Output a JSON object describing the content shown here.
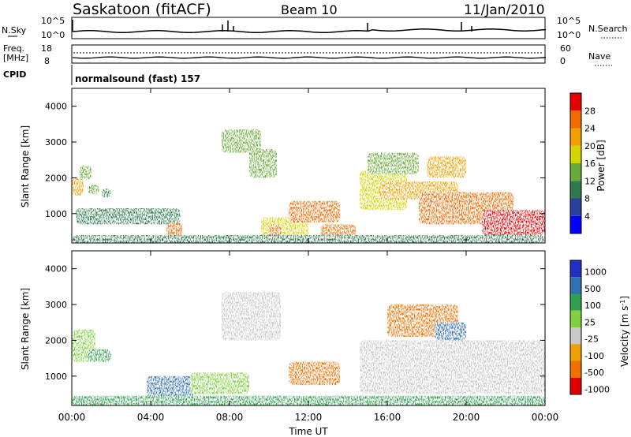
{
  "header": {
    "station": "Saskatoon (fitACF)",
    "beam": "Beam 10",
    "date": "11/Jan/2010"
  },
  "top_panels": {
    "nsky_label": "N.Sky",
    "nsky_ticks": [
      "10^5",
      "10^0"
    ],
    "nsearch_ticks": [
      "10^5",
      "10^0"
    ],
    "nsearch_label": "N.Search",
    "freq_label": "Freq.",
    "freq_unit": "[MHz]",
    "freq_ticks": [
      "18",
      "8"
    ],
    "nave_ticks": [
      "60",
      "0"
    ],
    "nave_label": "Nave",
    "cpid_label": "CPID",
    "program": "normalsound (fast) 157"
  },
  "chart_data": [
    {
      "type": "heatmap",
      "name": "power",
      "ylabel": "Slant Range [km]",
      "xlabel": "",
      "ylim": [
        180,
        4500
      ],
      "xlim": [
        0,
        24
      ],
      "yticks": [
        "1000",
        "2000",
        "3000",
        "4000"
      ],
      "colorbar": {
        "label": "Power [dB]",
        "ticks": [
          "28",
          "24",
          "20",
          "16",
          "12",
          "8",
          "4"
        ],
        "colors": [
          "#0000ff",
          "#2b3f9c",
          "#2d7a4f",
          "#6aaa3a",
          "#d4d400",
          "#f2a000",
          "#f26a00",
          "#e60000"
        ],
        "range": [
          0,
          32
        ]
      },
      "regions": [
        {
          "t0": 0.0,
          "t1": 0.6,
          "r0": 1500,
          "r1": 2000,
          "level": 22
        },
        {
          "t0": 0.4,
          "t1": 1.0,
          "r0": 1950,
          "r1": 2350,
          "level": 14
        },
        {
          "t0": 0.8,
          "t1": 1.4,
          "r0": 1550,
          "r1": 1800,
          "level": 12
        },
        {
          "t0": 1.5,
          "t1": 2.0,
          "r0": 1450,
          "r1": 1700,
          "level": 10
        },
        {
          "t0": 0.2,
          "t1": 5.5,
          "r0": 700,
          "r1": 1150,
          "level": 10
        },
        {
          "t0": 4.8,
          "t1": 5.6,
          "r0": 350,
          "r1": 750,
          "level": 24
        },
        {
          "t0": 7.6,
          "t1": 9.6,
          "r0": 2700,
          "r1": 3350,
          "level": 14
        },
        {
          "t0": 9.0,
          "t1": 10.4,
          "r0": 2000,
          "r1": 2800,
          "level": 12
        },
        {
          "t0": 9.6,
          "t1": 12.0,
          "r0": 300,
          "r1": 900,
          "level": 16
        },
        {
          "t0": 10.0,
          "t1": 10.6,
          "r0": 300,
          "r1": 700,
          "level": 27
        },
        {
          "t0": 11.0,
          "t1": 13.6,
          "r0": 750,
          "r1": 1350,
          "level": 26
        },
        {
          "t0": 12.6,
          "t1": 14.4,
          "r0": 350,
          "r1": 700,
          "level": 27
        },
        {
          "t0": 14.6,
          "t1": 17.0,
          "r0": 1100,
          "r1": 2200,
          "level": 16
        },
        {
          "t0": 15.6,
          "t1": 19.6,
          "r0": 1400,
          "r1": 1900,
          "level": 20
        },
        {
          "t0": 15.0,
          "t1": 17.6,
          "r0": 2100,
          "r1": 2700,
          "level": 14
        },
        {
          "t0": 18.0,
          "t1": 20.0,
          "r0": 2000,
          "r1": 2600,
          "level": 22
        },
        {
          "t0": 17.6,
          "t1": 22.4,
          "r0": 700,
          "r1": 1600,
          "level": 24
        },
        {
          "t0": 20.8,
          "t1": 24.0,
          "r0": 400,
          "r1": 1100,
          "level": 28
        },
        {
          "t0": 0.0,
          "t1": 24.0,
          "r0": 180,
          "r1": 400,
          "level": 8
        }
      ]
    },
    {
      "type": "heatmap",
      "name": "velocity",
      "ylabel": "Slant Range [km]",
      "xlabel": "Time UT",
      "ylim": [
        180,
        4500
      ],
      "xlim": [
        0,
        24
      ],
      "yticks": [
        "1000",
        "2000",
        "3000",
        "4000"
      ],
      "xticks": [
        "00:00",
        "04:00",
        "08:00",
        "12:00",
        "16:00",
        "20:00",
        "00:00"
      ],
      "colorbar": {
        "label": "Velocity [m s^-1]",
        "ticks": [
          "1000",
          "500",
          "100",
          "25",
          "-25",
          "-100",
          "-500",
          "-1000"
        ],
        "colors": [
          "#2030c0",
          "#3070b0",
          "#30a050",
          "#80d040",
          "#c8c8c8",
          "#f0a000",
          "#f07000",
          "#e00000"
        ]
      },
      "regions": [
        {
          "t0": 0.0,
          "t1": 1.2,
          "r0": 1400,
          "r1": 2300,
          "level": 25
        },
        {
          "t0": 0.8,
          "t1": 2.0,
          "r0": 1400,
          "r1": 1750,
          "level": 100
        },
        {
          "t0": 3.8,
          "t1": 6.2,
          "r0": 400,
          "r1": 1000,
          "level": 500
        },
        {
          "t0": 6.0,
          "t1": 9.0,
          "r0": 500,
          "r1": 1100,
          "level": 25
        },
        {
          "t0": 7.6,
          "t1": 10.6,
          "r0": 2000,
          "r1": 3350,
          "level": -25
        },
        {
          "t0": 11.0,
          "t1": 13.6,
          "r0": 750,
          "r1": 1400,
          "level": -500
        },
        {
          "t0": 14.6,
          "t1": 24.0,
          "r0": 500,
          "r1": 2000,
          "level": -25
        },
        {
          "t0": 16.0,
          "t1": 19.6,
          "r0": 2100,
          "r1": 3000,
          "level": -500
        },
        {
          "t0": 18.4,
          "t1": 20.0,
          "r0": 2000,
          "r1": 2500,
          "level": 500
        },
        {
          "t0": 0.0,
          "t1": 24.0,
          "r0": 180,
          "r1": 450,
          "level": 100
        }
      ]
    }
  ]
}
